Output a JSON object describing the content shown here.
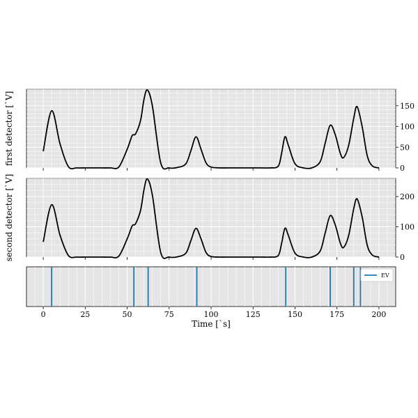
{
  "chart_data": [
    {
      "type": "line",
      "ylabel": "first detector [`V]",
      "xlim": [
        -10,
        210
      ],
      "ylim": [
        0,
        190
      ],
      "yticks": [
        0,
        50,
        100,
        150
      ],
      "x": [
        0,
        5,
        10,
        15,
        20,
        25,
        30,
        35,
        40,
        45,
        50,
        53,
        55,
        58,
        60,
        62,
        65,
        70,
        75,
        80,
        85,
        88,
        91,
        94,
        97,
        100,
        105,
        110,
        115,
        120,
        125,
        130,
        135,
        140,
        142,
        144,
        146,
        150,
        155,
        160,
        165,
        168,
        171,
        174,
        177,
        179,
        182,
        185,
        187,
        190,
        193,
        196,
        200
      ],
      "series": [
        {
          "values": [
            40,
            138,
            58,
            3,
            0,
            0,
            0,
            0,
            0,
            2,
            45,
            78,
            82,
            115,
            165,
            188,
            150,
            12,
            0,
            1,
            10,
            42,
            75,
            45,
            12,
            2,
            0,
            0,
            0,
            0,
            0,
            0,
            0,
            4,
            35,
            75,
            55,
            10,
            0,
            0,
            15,
            60,
            103,
            80,
            35,
            25,
            55,
            120,
            148,
            100,
            30,
            5,
            0
          ]
        }
      ]
    },
    {
      "type": "line",
      "ylabel": "second detector [`V]",
      "xlim": [
        -10,
        210
      ],
      "ylim": [
        0,
        260
      ],
      "yticks": [
        0,
        100,
        200
      ],
      "x": [
        0,
        5,
        10,
        15,
        20,
        25,
        30,
        35,
        40,
        45,
        50,
        53,
        55,
        58,
        60,
        62,
        65,
        70,
        75,
        80,
        85,
        88,
        91,
        94,
        97,
        100,
        105,
        110,
        115,
        120,
        125,
        130,
        135,
        140,
        142,
        144,
        146,
        150,
        155,
        160,
        165,
        168,
        171,
        174,
        177,
        179,
        182,
        185,
        187,
        190,
        193,
        196,
        200
      ],
      "series": [
        {
          "values": [
            50,
            173,
            72,
            5,
            0,
            0,
            0,
            0,
            0,
            3,
            60,
            103,
            110,
            155,
            222,
            258,
            205,
            15,
            0,
            1,
            13,
            55,
            95,
            60,
            15,
            2,
            0,
            0,
            0,
            0,
            0,
            0,
            0,
            5,
            45,
            95,
            72,
            13,
            0,
            0,
            20,
            80,
            137,
            106,
            46,
            32,
            72,
            160,
            192,
            133,
            40,
            7,
            0
          ]
        }
      ]
    },
    {
      "type": "event",
      "xlabel": "Time [`s]",
      "xlim": [
        -10,
        210
      ],
      "xticks": [
        0,
        25,
        50,
        75,
        100,
        125,
        150,
        175,
        200
      ],
      "legend": "top-right",
      "series": [
        {
          "name": "EV",
          "color": "#1f77b4",
          "events": [
            5,
            54,
            62.5,
            91.5,
            144.5,
            171,
            185,
            189
          ]
        }
      ]
    }
  ]
}
